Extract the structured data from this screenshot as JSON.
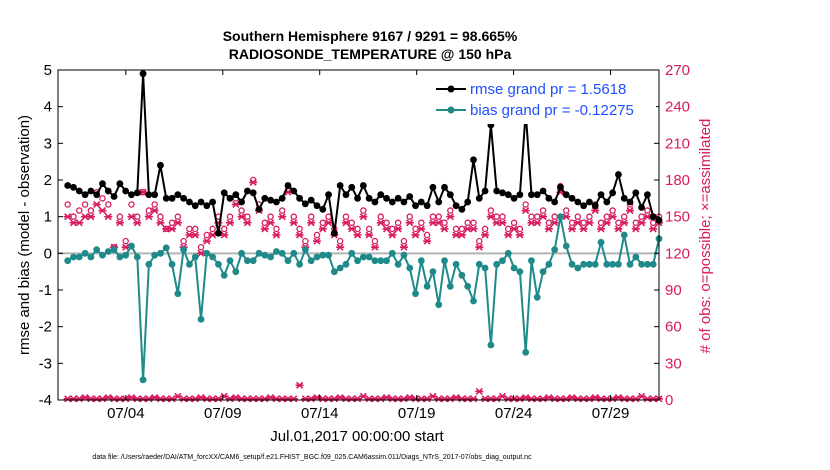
{
  "chart_data": {
    "type": "line",
    "title_line1": "Southern Hemisphere 9167 / 9291 = 98.665%",
    "title_line2": "RADIOSONDE_TEMPERATURE @ 150 hPa",
    "xlabel": "Jul.01,2017 00:00:00 start",
    "ylabel_left": "rmse and bias (model - observation)",
    "ylabel_right": "# of obs: o=possible; ×=assimilated",
    "xlim": [
      0.5,
      31.5
    ],
    "ylim_left": [
      -4,
      5
    ],
    "ylim_right": [
      0,
      270
    ],
    "left_ticks": [
      "-4",
      "-3",
      "-2",
      "-1",
      "0",
      "1",
      "2",
      "3",
      "4",
      "5"
    ],
    "right_ticks": [
      "0",
      "30",
      "60",
      "90",
      "120",
      "150",
      "180",
      "210",
      "240",
      "270"
    ],
    "x_ticks": [
      {
        "day": 4,
        "label": "07/04"
      },
      {
        "day": 9,
        "label": "07/09"
      },
      {
        "day": 14,
        "label": "07/14"
      },
      {
        "day": 19,
        "label": "07/19"
      },
      {
        "day": 24,
        "label": "07/24"
      },
      {
        "day": 29,
        "label": "07/29"
      }
    ],
    "legend": [
      {
        "name": "rmse grand pr = 1.5618",
        "color": "#000000"
      },
      {
        "name": "bias grand pr = -0.12275",
        "color": "#1f8a8a"
      }
    ],
    "colors": {
      "rmse": "#000000",
      "bias": "#1f8a8a",
      "obs": "#d81b60",
      "zero": "#b4b4b4"
    },
    "rmse": [
      1.85,
      1.8,
      1.7,
      1.6,
      1.7,
      1.6,
      1.9,
      1.7,
      1.55,
      1.9,
      1.7,
      1.6,
      1.65,
      4.9,
      1.6,
      1.6,
      2.4,
      1.5,
      1.5,
      1.6,
      1.5,
      1.4,
      1.3,
      1.4,
      1.3,
      1.4,
      0.55,
      1.65,
      1.5,
      1.6,
      1.4,
      1.7,
      1.65,
      1.2,
      1.5,
      1.45,
      1.4,
      1.5,
      1.85,
      1.7,
      1.5,
      1.35,
      1.45,
      1.3,
      1.2,
      1.6,
      0.55,
      1.85,
      1.6,
      1.8,
      1.5,
      1.85,
      1.5,
      1.4,
      1.6,
      1.5,
      1.4,
      1.5,
      1.4,
      1.55,
      1.3,
      1.4,
      1.3,
      1.8,
      1.4,
      1.8,
      1.6,
      1.3,
      1.2,
      1.4,
      2.55,
      1.5,
      1.7,
      3.5,
      1.7,
      1.65,
      1.6,
      1.5,
      1.6,
      3.85,
      1.6,
      1.6,
      1.7,
      1.5,
      1.4,
      1.8,
      1.6,
      1.5,
      1.4,
      1.3,
      1.4,
      1.3,
      1.6,
      1.4,
      1.65,
      2.15,
      1.5,
      1.4,
      1.65,
      1.25,
      1.6,
      1.0,
      0.9
    ],
    "bias": [
      -0.2,
      -0.1,
      -0.1,
      0.0,
      -0.1,
      0.1,
      -0.05,
      0.05,
      0.1,
      -0.1,
      -0.05,
      0.2,
      -0.1,
      -3.45,
      -0.3,
      -0.05,
      0.0,
      0.15,
      -0.3,
      -1.1,
      0.1,
      -0.3,
      -0.1,
      -1.8,
      0.0,
      -0.1,
      -0.3,
      -0.6,
      -0.2,
      -0.5,
      0.0,
      -0.2,
      -0.2,
      0.0,
      -0.05,
      -0.1,
      0.05,
      0.0,
      -0.2,
      0.0,
      -0.3,
      0.1,
      -0.2,
      -0.1,
      -0.05,
      -0.05,
      -0.5,
      -0.4,
      -0.3,
      0.0,
      -0.2,
      -0.1,
      -0.1,
      -0.2,
      -0.2,
      -0.2,
      0.0,
      -0.3,
      -0.05,
      -0.4,
      -1.1,
      -0.2,
      -0.9,
      -0.5,
      -1.4,
      -0.2,
      -0.9,
      -0.3,
      -0.6,
      -0.9,
      -1.3,
      -0.3,
      -0.4,
      -2.5,
      -0.3,
      -0.2,
      0.0,
      -0.4,
      -0.5,
      -2.7,
      -0.2,
      -1.2,
      -0.5,
      -0.3,
      0.1,
      1.0,
      0.2,
      -0.3,
      -0.4,
      -0.3,
      -0.3,
      -0.3,
      0.3,
      -0.3,
      -0.3,
      -0.3,
      0.5,
      -0.3,
      -0.1,
      -0.3,
      -0.3,
      -0.3,
      0.4
    ],
    "obs_possible": [
      160,
      150,
      155,
      160,
      155,
      170,
      165,
      160,
      125,
      150,
      130,
      160,
      150,
      170,
      155,
      160,
      150,
      140,
      145,
      150,
      130,
      140,
      140,
      125,
      135,
      140,
      150,
      140,
      150,
      165,
      155,
      150,
      180,
      160,
      145,
      150,
      140,
      155,
      175,
      150,
      140,
      130,
      150,
      135,
      145,
      150,
      140,
      130,
      150,
      145,
      140,
      155,
      140,
      130,
      150,
      145,
      140,
      145,
      130,
      150,
      140,
      145,
      135,
      150,
      150,
      145,
      155,
      140,
      140,
      145,
      145,
      130,
      140,
      155,
      150,
      150,
      140,
      145,
      140,
      160,
      150,
      150,
      155,
      145,
      150,
      175,
      155,
      145,
      150,
      145,
      150,
      160,
      145,
      150,
      155,
      145,
      150,
      160,
      145,
      150,
      155,
      145,
      150
    ],
    "obs_assimilated": [
      150,
      145,
      145,
      150,
      150,
      160,
      155,
      150,
      125,
      145,
      125,
      150,
      145,
      170,
      150,
      155,
      145,
      140,
      140,
      145,
      125,
      135,
      135,
      120,
      130,
      135,
      145,
      135,
      145,
      160,
      150,
      145,
      178,
      155,
      140,
      145,
      135,
      150,
      170,
      145,
      135,
      125,
      145,
      130,
      140,
      145,
      135,
      125,
      145,
      140,
      135,
      150,
      135,
      125,
      145,
      140,
      135,
      140,
      125,
      145,
      135,
      140,
      130,
      145,
      145,
      140,
      150,
      135,
      135,
      140,
      140,
      125,
      135,
      150,
      145,
      145,
      135,
      140,
      135,
      155,
      145,
      145,
      150,
      140,
      145,
      170,
      150,
      140,
      145,
      140,
      145,
      155,
      140,
      145,
      150,
      140,
      145,
      155,
      140,
      145,
      150,
      140,
      145
    ],
    "obs_bottom": [
      1,
      1,
      1,
      2,
      1,
      1,
      1,
      2,
      1,
      1,
      1,
      2,
      1,
      1,
      1,
      2,
      1,
      1,
      1,
      3,
      1,
      1,
      1,
      2,
      1,
      1,
      1,
      3,
      1,
      2,
      1,
      1,
      1,
      1,
      1,
      2,
      1,
      1,
      1,
      1,
      12,
      1,
      1,
      2,
      1,
      1,
      1,
      2,
      1,
      1,
      1,
      3,
      1,
      1,
      1,
      2,
      1,
      1,
      1,
      2,
      1,
      1,
      1,
      3,
      1,
      1,
      1,
      2,
      1,
      1,
      1,
      7,
      1,
      1,
      1,
      3,
      1,
      1,
      1,
      2,
      1,
      1,
      1,
      2,
      1,
      1,
      1,
      2,
      1,
      1,
      1,
      2,
      1,
      1,
      1,
      2,
      1,
      1,
      1,
      3,
      1,
      1,
      1
    ]
  },
  "footer": "data file: /Users/raeder/DAI/ATM_forcXX/CAM6_setup/f.e21.FHIST_BGC.f09_025.CAM6assim.011/Diags_NTrS_2017-07/obs_diag_output.nc"
}
